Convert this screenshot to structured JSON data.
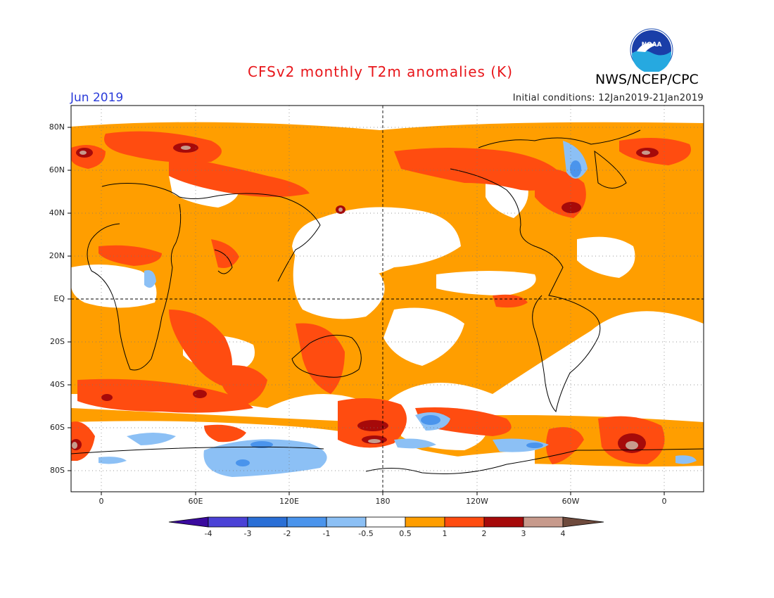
{
  "header": {
    "title": "CFSv2 monthly T2m anomalies (K)",
    "agency": "NWS/NCEP/CPC",
    "logo_text": "NOAA",
    "month": "Jun 2019",
    "initial_conditions": "Initial conditions: 12Jan2019-21Jan2019"
  },
  "map": {
    "lat_labels": [
      "80N",
      "60N",
      "40N",
      "20N",
      "EQ",
      "20S",
      "40S",
      "60S",
      "80S"
    ],
    "lon_labels": [
      "0",
      "60E",
      "120E",
      "180",
      "120W",
      "60W",
      "0"
    ]
  },
  "colorbar": {
    "labels": [
      "-4",
      "-3",
      "-2",
      "-1",
      "-0.5",
      "0.5",
      "1",
      "2",
      "3",
      "4"
    ],
    "colors": [
      "#3a0a9e",
      "#4b42d6",
      "#2a6fd6",
      "#4a94ec",
      "#8cc0f5",
      "#ffffff",
      "#ff9e00",
      "#ff4c10",
      "#a60a0a",
      "#c79a8c",
      "#6e4a3c"
    ]
  },
  "anomaly_colors": {
    "warm_05": "#ff9e00",
    "warm_1": "#ff4c10",
    "warm_2": "#a60a0a",
    "warm_3": "#c79a8c",
    "cool_05": "#8cc0f5",
    "cool_1": "#4a94ec",
    "cool_2": "#2a6fd6"
  }
}
